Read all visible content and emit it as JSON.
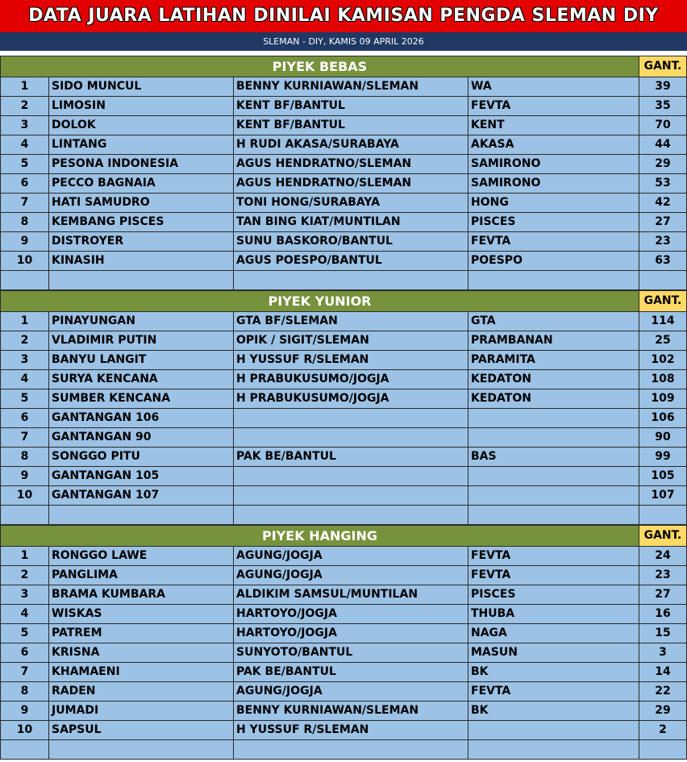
{
  "header": {
    "title": "DATA JUARA LATIHAN DINILAI KAMISAN PENGDA SLEMAN DIY",
    "subtitle": "SLEMAN - DIY, KAMIS 09 APRIL 2026"
  },
  "sections": [
    {
      "title": "PIYEK BEBAS",
      "gant_label": "GANT.",
      "rows": [
        [
          1,
          "SIDO MUNCUL",
          "BENNY KURNIAWAN/SLEMAN",
          "WA",
          39
        ],
        [
          2,
          "LIMOSIN",
          "KENT BF/BANTUL",
          "FEVTA",
          35
        ],
        [
          3,
          "DOLOK",
          "KENT BF/BANTUL",
          "KENT",
          70
        ],
        [
          4,
          "LINTANG",
          "H RUDI AKASA/SURABAYA",
          "AKASA",
          44
        ],
        [
          5,
          "PESONA INDONESIA",
          "AGUS HENDRATNO/SLEMAN",
          "SAMIRONO",
          29
        ],
        [
          6,
          "PECCO BAGNAIA",
          "AGUS HENDRATNO/SLEMAN",
          "SAMIRONO",
          53
        ],
        [
          7,
          "HATI SAMUDRO",
          "TONI HONG/SURABAYA",
          "HONG",
          42
        ],
        [
          8,
          "KEMBANG PISCES",
          "TAN BING KIAT/MUNTILAN",
          "PISCES",
          27
        ],
        [
          9,
          "DISTROYER",
          "SUNU BASKORO/BANTUL",
          "FEVTA",
          23
        ],
        [
          10,
          "KINASIH",
          "AGUS POESPO/BANTUL",
          "POESPO",
          63
        ]
      ]
    },
    {
      "title": "PIYEK YUNIOR",
      "gant_label": "GANT.",
      "rows": [
        [
          1,
          "PINAYUNGAN",
          "GTA BF/SLEMAN",
          "GTA",
          114
        ],
        [
          2,
          "VLADIMIR PUTIN",
          "OPIK / SIGIT/SLEMAN",
          "PRAMBANAN",
          25
        ],
        [
          3,
          "BANYU LANGIT",
          "H YUSSUF R/SLEMAN",
          "PARAMITA",
          102
        ],
        [
          4,
          "SURYA KENCANA",
          "H PRABUKUSUMO/JOGJA",
          "KEDATON",
          108
        ],
        [
          5,
          "SUMBER KENCANA",
          "H PRABUKUSUMO/JOGJA",
          "KEDATON",
          109
        ],
        [
          6,
          "GANTANGAN 106",
          null,
          null,
          106
        ],
        [
          7,
          "GANTANGAN 90",
          null,
          null,
          90
        ],
        [
          8,
          "SONGGO PITU",
          "PAK BE/BANTUL",
          "BAS",
          99
        ],
        [
          9,
          "GANTANGAN 105",
          null,
          null,
          105
        ],
        [
          10,
          "GANTANGAN 107",
          null,
          null,
          107
        ]
      ]
    },
    {
      "title": "PIYEK HANGING",
      "gant_label": "GANT.",
      "rows": [
        [
          1,
          "RONGGO LAWE",
          "AGUNG/JOGJA",
          "FEVTA",
          24
        ],
        [
          2,
          "PANGLIMA",
          "AGUNG/JOGJA",
          "FEVTA",
          23
        ],
        [
          3,
          "BRAMA KUMBARA",
          "ALDIKIM SAMSUL/MUNTILAN",
          "PISCES",
          27
        ],
        [
          4,
          "WISKAS",
          "HARTOYO/JOGJA",
          "THUBA",
          16
        ],
        [
          5,
          "PATREM",
          "HARTOYO/JOGJA",
          "NAGA",
          15
        ],
        [
          6,
          "KRISNA",
          "SUNYOTO/BANTUL",
          "MASUN",
          3
        ],
        [
          7,
          "KHAMAENI",
          "PAK BE/BANTUL",
          "BK",
          14
        ],
        [
          8,
          "RADEN",
          "AGUNG/JOGJA",
          "FEVTA",
          22
        ],
        [
          9,
          "JUMADI",
          "BENNY KURNIAWAN/SLEMAN",
          "BK",
          29
        ],
        [
          10,
          "SAPSUL",
          "H YUSSUF R/SLEMAN",
          null,
          2
        ]
      ]
    }
  ]
}
